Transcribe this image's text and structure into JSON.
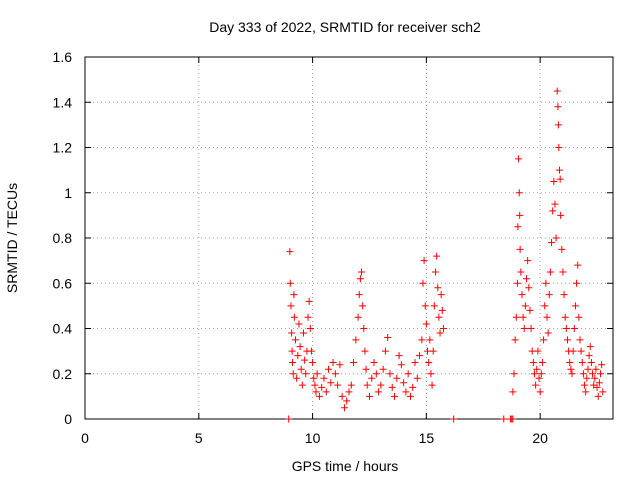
{
  "chart_data": {
    "type": "scatter",
    "title": "Day 333 of 2022, SRMTID for receiver sch2",
    "xlabel": "GPS time / hours",
    "ylabel": "SRMTID / TECUs",
    "xlim": [
      0,
      23.2
    ],
    "ylim": [
      0,
      1.6
    ],
    "xticks": [
      0,
      5,
      10,
      15,
      20
    ],
    "xtick_labels": [
      "0",
      "5",
      "10",
      "15",
      "20"
    ],
    "yticks": [
      0,
      0.2,
      0.4,
      0.6,
      0.8,
      1.0,
      1.2,
      1.4,
      1.6
    ],
    "ytick_labels": [
      "0",
      "0.2",
      "0.4",
      "0.6",
      "0.8",
      "1",
      "1.2",
      "1.4",
      "1.6"
    ],
    "grid": true,
    "marker": "+",
    "series_color": "#ff0000",
    "series": [
      {
        "name": "sch2",
        "points": [
          [
            8.95,
            0.0
          ],
          [
            9.0,
            0.74
          ],
          [
            9.02,
            0.6
          ],
          [
            9.05,
            0.5
          ],
          [
            9.08,
            0.38
          ],
          [
            9.1,
            0.3
          ],
          [
            9.12,
            0.25
          ],
          [
            9.15,
            0.2
          ],
          [
            9.18,
            0.55
          ],
          [
            9.2,
            0.45
          ],
          [
            9.25,
            0.35
          ],
          [
            9.3,
            0.18
          ],
          [
            9.35,
            0.28
          ],
          [
            9.4,
            0.42
          ],
          [
            9.45,
            0.32
          ],
          [
            9.5,
            0.22
          ],
          [
            9.55,
            0.15
          ],
          [
            9.6,
            0.38
          ],
          [
            9.65,
            0.26
          ],
          [
            9.7,
            0.2
          ],
          [
            9.75,
            0.3
          ],
          [
            9.8,
            0.45
          ],
          [
            9.85,
            0.52
          ],
          [
            9.9,
            0.4
          ],
          [
            9.95,
            0.3
          ],
          [
            10.0,
            0.25
          ],
          [
            10.05,
            0.18
          ],
          [
            10.1,
            0.15
          ],
          [
            10.15,
            0.12
          ],
          [
            10.2,
            0.2
          ],
          [
            10.3,
            0.1
          ],
          [
            10.4,
            0.14
          ],
          [
            10.5,
            0.18
          ],
          [
            10.6,
            0.12
          ],
          [
            10.7,
            0.22
          ],
          [
            10.8,
            0.16
          ],
          [
            10.9,
            0.25
          ],
          [
            11.0,
            0.2
          ],
          [
            11.1,
            0.15
          ],
          [
            11.2,
            0.24
          ],
          [
            11.3,
            0.1
          ],
          [
            11.4,
            0.05
          ],
          [
            11.5,
            0.08
          ],
          [
            11.6,
            0.12
          ],
          [
            11.7,
            0.15
          ],
          [
            11.8,
            0.25
          ],
          [
            11.9,
            0.35
          ],
          [
            12.0,
            0.45
          ],
          [
            12.05,
            0.55
          ],
          [
            12.1,
            0.62
          ],
          [
            12.15,
            0.65
          ],
          [
            12.2,
            0.5
          ],
          [
            12.25,
            0.4
          ],
          [
            12.3,
            0.3
          ],
          [
            12.35,
            0.22
          ],
          [
            12.4,
            0.15
          ],
          [
            12.5,
            0.1
          ],
          [
            12.6,
            0.18
          ],
          [
            12.7,
            0.25
          ],
          [
            12.8,
            0.2
          ],
          [
            12.9,
            0.12
          ],
          [
            13.0,
            0.15
          ],
          [
            13.1,
            0.22
          ],
          [
            13.2,
            0.3
          ],
          [
            13.3,
            0.36
          ],
          [
            13.4,
            0.2
          ],
          [
            13.5,
            0.14
          ],
          [
            13.6,
            0.1
          ],
          [
            13.7,
            0.18
          ],
          [
            13.8,
            0.28
          ],
          [
            13.9,
            0.24
          ],
          [
            14.0,
            0.16
          ],
          [
            14.1,
            0.12
          ],
          [
            14.2,
            0.2
          ],
          [
            14.3,
            0.1
          ],
          [
            14.4,
            0.14
          ],
          [
            14.5,
            0.25
          ],
          [
            14.6,
            0.18
          ],
          [
            14.7,
            0.28
          ],
          [
            14.8,
            0.35
          ],
          [
            14.85,
            0.6
          ],
          [
            14.9,
            0.7
          ],
          [
            14.95,
            0.5
          ],
          [
            15.0,
            0.42
          ],
          [
            15.05,
            0.3
          ],
          [
            15.1,
            0.25
          ],
          [
            15.15,
            0.35
          ],
          [
            15.2,
            0.2
          ],
          [
            15.25,
            0.15
          ],
          [
            15.3,
            0.3
          ],
          [
            15.35,
            0.5
          ],
          [
            15.4,
            0.65
          ],
          [
            15.45,
            0.72
          ],
          [
            15.5,
            0.58
          ],
          [
            15.55,
            0.45
          ],
          [
            15.6,
            0.38
          ],
          [
            15.65,
            0.55
          ],
          [
            15.7,
            0.48
          ],
          [
            15.75,
            0.4
          ],
          [
            16.2,
            0.0
          ],
          [
            18.4,
            0.0
          ],
          [
            18.7,
            0.0
          ],
          [
            18.75,
            0.0
          ],
          [
            18.8,
            0.0
          ],
          [
            18.8,
            0.12
          ],
          [
            18.85,
            0.2
          ],
          [
            18.9,
            0.35
          ],
          [
            18.95,
            0.45
          ],
          [
            19.0,
            0.6
          ],
          [
            19.02,
            0.85
          ],
          [
            19.05,
            1.15
          ],
          [
            19.08,
            1.0
          ],
          [
            19.1,
            0.9
          ],
          [
            19.12,
            0.75
          ],
          [
            19.15,
            0.65
          ],
          [
            19.2,
            0.55
          ],
          [
            19.25,
            0.45
          ],
          [
            19.3,
            0.4
          ],
          [
            19.35,
            0.5
          ],
          [
            19.4,
            0.62
          ],
          [
            19.45,
            0.7
          ],
          [
            19.5,
            0.58
          ],
          [
            19.55,
            0.48
          ],
          [
            19.6,
            0.4
          ],
          [
            19.65,
            0.3
          ],
          [
            19.7,
            0.25
          ],
          [
            19.75,
            0.2
          ],
          [
            19.8,
            0.15
          ],
          [
            19.85,
            0.22
          ],
          [
            19.9,
            0.3
          ],
          [
            19.95,
            0.18
          ],
          [
            20.0,
            0.12
          ],
          [
            20.05,
            0.2
          ],
          [
            20.1,
            0.25
          ],
          [
            20.15,
            0.35
          ],
          [
            20.2,
            0.5
          ],
          [
            20.25,
            0.6
          ],
          [
            20.3,
            0.45
          ],
          [
            20.35,
            0.38
          ],
          [
            20.4,
            0.55
          ],
          [
            20.45,
            0.65
          ],
          [
            20.5,
            0.78
          ],
          [
            20.55,
            0.92
          ],
          [
            20.6,
            1.05
          ],
          [
            20.65,
            0.95
          ],
          [
            20.7,
            0.8
          ],
          [
            20.75,
            1.45
          ],
          [
            20.78,
            1.38
          ],
          [
            20.8,
            1.3
          ],
          [
            20.82,
            1.2
          ],
          [
            20.85,
            1.1
          ],
          [
            20.88,
            1.06
          ],
          [
            20.9,
            0.9
          ],
          [
            20.95,
            0.75
          ],
          [
            21.0,
            0.65
          ],
          [
            21.05,
            0.55
          ],
          [
            21.1,
            0.45
          ],
          [
            21.15,
            0.4
          ],
          [
            21.2,
            0.35
          ],
          [
            21.25,
            0.3
          ],
          [
            21.3,
            0.25
          ],
          [
            21.35,
            0.22
          ],
          [
            21.4,
            0.2
          ],
          [
            21.45,
            0.3
          ],
          [
            21.5,
            0.4
          ],
          [
            21.55,
            0.5
          ],
          [
            21.6,
            0.6
          ],
          [
            21.65,
            0.68
          ],
          [
            21.7,
            0.45
          ],
          [
            21.75,
            0.35
          ],
          [
            21.8,
            0.3
          ],
          [
            21.85,
            0.25
          ],
          [
            21.9,
            0.2
          ],
          [
            21.95,
            0.15
          ],
          [
            22.0,
            0.12
          ],
          [
            22.05,
            0.18
          ],
          [
            22.1,
            0.22
          ],
          [
            22.15,
            0.28
          ],
          [
            22.2,
            0.32
          ],
          [
            22.25,
            0.25
          ],
          [
            22.3,
            0.2
          ],
          [
            22.35,
            0.15
          ],
          [
            22.4,
            0.18
          ],
          [
            22.45,
            0.22
          ],
          [
            22.5,
            0.14
          ],
          [
            22.55,
            0.1
          ],
          [
            22.6,
            0.16
          ],
          [
            22.65,
            0.2
          ],
          [
            22.7,
            0.24
          ],
          [
            22.75,
            0.12
          ]
        ]
      }
    ]
  }
}
